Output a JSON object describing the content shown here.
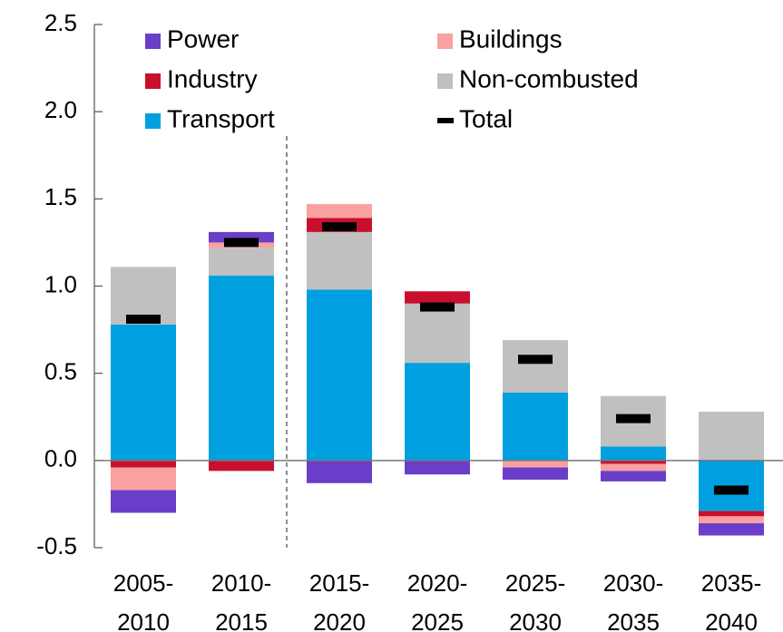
{
  "chart_data": {
    "type": "bar",
    "stacked": true,
    "categories": [
      "2005-2010",
      "2010-2015",
      "2015-2020",
      "2020-2025",
      "2025-2030",
      "2030-2035",
      "2035-2040"
    ],
    "series": [
      {
        "name": "Transport",
        "color": "#00a0e0",
        "values": [
          0.78,
          1.06,
          0.98,
          0.56,
          0.39,
          0.08,
          -0.29
        ]
      },
      {
        "name": "Non-combusted",
        "color": "#c0c0c0",
        "values": [
          0.33,
          0.16,
          0.33,
          0.34,
          0.3,
          0.29,
          0.28
        ]
      },
      {
        "name": "Industry",
        "color": "#c8102e",
        "values": [
          -0.04,
          -0.06,
          0.08,
          0.07,
          0,
          -0.02,
          -0.03
        ]
      },
      {
        "name": "Buildings",
        "color": "#f9a0a0",
        "values": [
          -0.13,
          0.03,
          0.08,
          0,
          -0.04,
          -0.04,
          -0.04
        ]
      },
      {
        "name": "Power",
        "color": "#6a3ec9",
        "values": [
          -0.13,
          0.06,
          -0.13,
          -0.08,
          -0.07,
          -0.06,
          -0.07
        ]
      },
      {
        "name": "Total",
        "color": "#000000",
        "marker": "dash",
        "values": [
          0.81,
          1.25,
          1.34,
          0.88,
          0.58,
          0.24,
          -0.17
        ]
      }
    ],
    "ylim": [
      -0.5,
      2.5
    ],
    "yticks": [
      {
        "value": -0.5,
        "label": "-0.5"
      },
      {
        "value": 0,
        "label": "0.0"
      },
      {
        "value": 0.5,
        "label": "0.5"
      },
      {
        "value": 1,
        "label": "1.0"
      },
      {
        "value": 1.5,
        "label": "1.5"
      },
      {
        "value": 2,
        "label": "2.0"
      },
      {
        "value": 2.5,
        "label": "2.5"
      }
    ],
    "legend": "upper"
  }
}
